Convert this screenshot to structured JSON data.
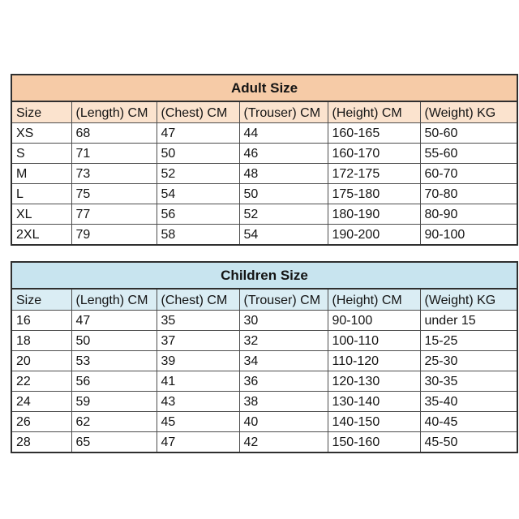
{
  "page": {
    "background": "#ffffff",
    "border_color": "#4d4d4d",
    "text_color": "#141414"
  },
  "adult_table": {
    "title": "Adult Size",
    "title_bg": "#f6cba7",
    "header_bg": "#fbe3ce",
    "columns": [
      "Size",
      "(Length) CM",
      "(Chest) CM",
      "(Trouser) CM",
      "(Height) CM",
      "(Weight) KG"
    ],
    "rows": [
      [
        "XS",
        "68",
        "47",
        "44",
        "160-165",
        "50-60"
      ],
      [
        "S",
        "71",
        "50",
        "46",
        "160-170",
        "55-60"
      ],
      [
        "M",
        "73",
        "52",
        "48",
        "172-175",
        "60-70"
      ],
      [
        "L",
        "75",
        "54",
        "50",
        "175-180",
        "70-80"
      ],
      [
        "XL",
        "77",
        "56",
        "52",
        "180-190",
        "80-90"
      ],
      [
        "2XL",
        "79",
        "58",
        "54",
        "190-200",
        "90-100"
      ]
    ]
  },
  "children_table": {
    "title": "Children Size",
    "title_bg": "#c8e4ef",
    "header_bg": "#daedf4",
    "columns": [
      "Size",
      "(Length) CM",
      "(Chest) CM",
      "(Trouser) CM",
      "(Height) CM",
      "(Weight) KG"
    ],
    "rows": [
      [
        "16",
        "47",
        "35",
        "30",
        "90-100",
        "under 15"
      ],
      [
        "18",
        "50",
        "37",
        "32",
        "100-110",
        "15-25"
      ],
      [
        "20",
        "53",
        "39",
        "34",
        "110-120",
        "25-30"
      ],
      [
        "22",
        "56",
        "41",
        "36",
        "120-130",
        "30-35"
      ],
      [
        "24",
        "59",
        "43",
        "38",
        "130-140",
        "35-40"
      ],
      [
        "26",
        "62",
        "45",
        "40",
        "140-150",
        "40-45"
      ],
      [
        "28",
        "65",
        "47",
        "42",
        "150-160",
        "45-50"
      ]
    ]
  }
}
